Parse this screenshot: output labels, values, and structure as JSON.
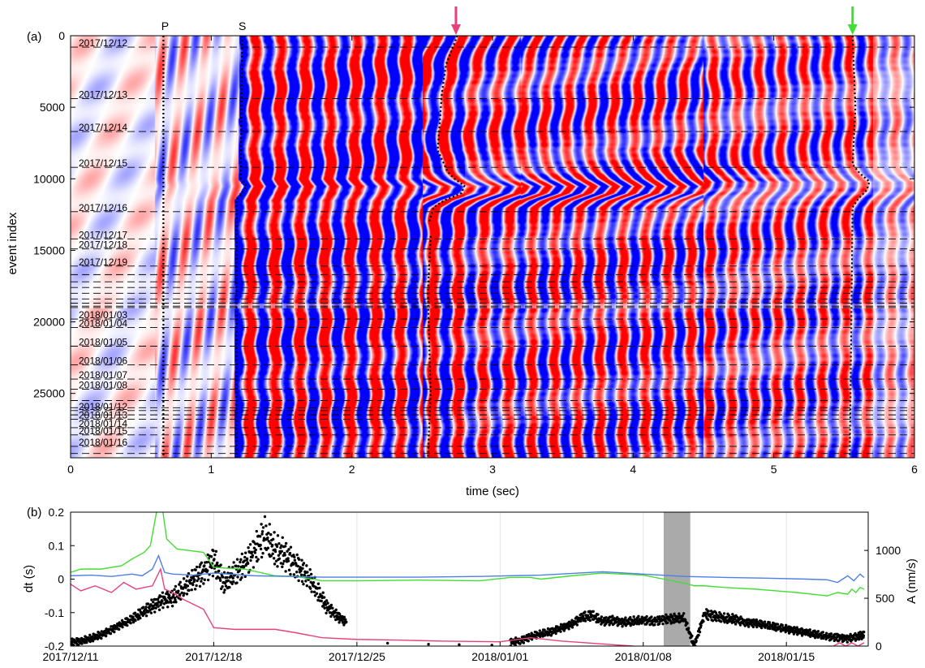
{
  "chart_data": [
    {
      "panel_label": "(a)",
      "type": "heatmap",
      "xlabel": "time (sec)",
      "ylabel": "event index",
      "xlim": [
        0,
        6
      ],
      "ylim": [
        0,
        29500
      ],
      "y_reversed": true,
      "xticks": [
        0,
        1,
        2,
        3,
        4,
        5,
        6
      ],
      "yticks": [
        0,
        5000,
        10000,
        15000,
        20000,
        25000
      ],
      "colormap": [
        "#0000ff",
        "#ffffff",
        "#ff0000"
      ],
      "phase_labels": [
        {
          "text": "P",
          "time": 0.66
        },
        {
          "text": "S",
          "time": 1.21
        }
      ],
      "arrows": [
        {
          "time": 2.74,
          "color": "#e8407a"
        },
        {
          "time": 5.56,
          "color": "#44dd33"
        }
      ],
      "p_pick_time": 0.66,
      "s_pick_curve": {
        "index": [
          0,
          10000,
          10500,
          11000,
          11500,
          29500
        ],
        "time": [
          1.22,
          1.21,
          1.25,
          1.22,
          1.18,
          1.18
        ]
      },
      "coda_pick_curve_1": {
        "index": [
          14000,
          18000,
          25000,
          29500
        ],
        "time": [
          2.56,
          2.54,
          2.56,
          2.54
        ]
      },
      "coda_pick_curve_2": {
        "index": [
          0,
          2000,
          4000,
          8000,
          9500,
          10000,
          10500,
          11000,
          11500,
          12000,
          13000
        ],
        "time": [
          2.75,
          2.67,
          2.64,
          2.61,
          2.68,
          2.73,
          2.8,
          2.78,
          2.66,
          2.58,
          2.55
        ]
      },
      "coda_pick_curve_3": {
        "index": [
          0,
          5000,
          9000,
          9600,
          10200,
          10800,
          11400,
          12000,
          29500
        ],
        "time": [
          5.56,
          5.58,
          5.56,
          5.61,
          5.68,
          5.66,
          5.6,
          5.56,
          5.54
        ]
      },
      "day_markers": [
        {
          "label": "2017/12/12",
          "index": 800
        },
        {
          "label": "2017/12/13",
          "index": 4400
        },
        {
          "label": "2017/12/14",
          "index": 6700
        },
        {
          "label": "2017/12/15",
          "index": 9200
        },
        {
          "label": "2017/12/16",
          "index": 12300
        },
        {
          "label": "2017/12/17",
          "index": 14200
        },
        {
          "label": "2017/12/18",
          "index": 14900
        },
        {
          "label": "2017/12/19",
          "index": 16100
        },
        {
          "label": "2018/01/03",
          "index": 19800
        },
        {
          "label": "2018/01/04",
          "index": 20400
        },
        {
          "label": "2018/01/05",
          "index": 21700
        },
        {
          "label": "2018/01/06",
          "index": 23000
        },
        {
          "label": "2018/01/07",
          "index": 24000
        },
        {
          "label": "2018/01/08",
          "index": 24700
        },
        {
          "label": "2018/01/12",
          "index": 26200
        },
        {
          "label": "2018/01/13",
          "index": 26800
        },
        {
          "label": "2018/01/14",
          "index": 27400
        },
        {
          "label": "2018/01/15",
          "index": 27900
        },
        {
          "label": "2018/01/16",
          "index": 28700
        }
      ],
      "extra_dash_lines": [
        16700,
        17200,
        17600,
        18000,
        18400,
        18700,
        18900,
        19000,
        25500,
        26000,
        26500,
        29200
      ]
    },
    {
      "panel_label": "(b)",
      "type": "line",
      "xlabel": "",
      "ylabel": "dt (s)",
      "ylabel_right": "A (nm/s)",
      "x_type": "date",
      "xlim": [
        "2017-12-11",
        "2018-01-19"
      ],
      "ylim": [
        -0.2,
        0.2
      ],
      "ylim_right": [
        0,
        1400
      ],
      "xticks": [
        "2017/12/11",
        "2017/12/18",
        "2017/12/25",
        "2018/01/01",
        "2018/01/08",
        "2018/01/15"
      ],
      "yticks": [
        "-0.2",
        "-0.1",
        "0",
        "0.1",
        "0.2"
      ],
      "yticks_right": [
        "0",
        "500",
        "1000"
      ],
      "gap_shading": {
        "from": "2018-01-09",
        "to": "2018-01-10.3",
        "color": "#aaaaaa"
      },
      "series": [
        {
          "color": "#44dd33",
          "axis": "left",
          "x": [
            0,
            0.5,
            1.5,
            2.5,
            3,
            3.6,
            3.9,
            4.2,
            4.4,
            4.7,
            5.2,
            6.5,
            7.0,
            8.5,
            10,
            11,
            12.3,
            14,
            17,
            20,
            21.5,
            22.5,
            23,
            24.5,
            26,
            28,
            29,
            30,
            30.5,
            31,
            32,
            33.5,
            34.5,
            35.5,
            37,
            37.5,
            38,
            38.2,
            38.4,
            38.6,
            38.8
          ],
          "y": [
            0.02,
            0.03,
            0.03,
            0.04,
            0.06,
            0.08,
            0.1,
            0.2,
            0.25,
            0.12,
            0.09,
            0.08,
            0.035,
            0.03,
            0.01,
            0.008,
            -0.005,
            -0.005,
            -0.003,
            -0.005,
            0.005,
            0.005,
            0.0,
            0.01,
            0.018,
            0.012,
            0.0,
            -0.012,
            -0.02,
            -0.02,
            -0.025,
            -0.03,
            -0.035,
            -0.04,
            -0.05,
            -0.04,
            -0.045,
            -0.03,
            -0.04,
            -0.025,
            -0.03
          ]
        },
        {
          "color": "#4d7fe6",
          "axis": "left",
          "x": [
            0,
            1,
            2,
            3,
            3.5,
            4,
            4.3,
            4.6,
            5,
            6,
            7,
            9,
            12.3,
            17,
            20,
            23,
            26,
            28,
            30,
            32,
            34,
            36,
            37,
            37.5,
            38,
            38.3,
            38.6,
            38.8
          ],
          "y": [
            0.01,
            0.012,
            0.008,
            0.015,
            0.01,
            0.03,
            0.07,
            0.02,
            0.015,
            0.012,
            0.018,
            0.01,
            0.006,
            0.006,
            0.008,
            0.012,
            0.022,
            0.015,
            0.008,
            0.005,
            0.003,
            0.0,
            -0.002,
            -0.01,
            0.01,
            -0.005,
            0.015,
            0.005
          ]
        },
        {
          "color": "#e8407a",
          "axis": "left",
          "x": [
            0,
            0.5,
            1.2,
            2,
            2.6,
            3.2,
            3.6,
            4.0,
            4.4,
            4.6,
            5,
            5.5,
            6.5,
            7.0,
            8,
            9,
            10,
            11,
            12.3,
            14,
            16,
            18,
            21,
            22.5,
            24,
            27.5,
            28,
            37.3,
            37.6,
            37.9,
            38.2,
            38.5,
            38.8
          ],
          "y": [
            -0.015,
            -0.035,
            -0.02,
            -0.04,
            -0.01,
            -0.03,
            -0.025,
            -0.02,
            0.03,
            -0.03,
            -0.04,
            -0.06,
            -0.09,
            -0.145,
            -0.15,
            -0.15,
            -0.15,
            -0.16,
            -0.175,
            -0.18,
            -0.182,
            -0.185,
            -0.187,
            -0.175,
            -0.185,
            -0.2,
            -0.21,
            -0.2,
            -0.19,
            -0.2,
            -0.19,
            -0.2,
            -0.19
          ]
        }
      ],
      "amplitude_series": {
        "color": "#000000",
        "axis": "right",
        "segments": [
          {
            "x": [
              0,
              0.5,
              1,
              1.5,
              2,
              2.5,
              3,
              3.5,
              4,
              4.5,
              5,
              5.5,
              6,
              6.5,
              7,
              7.5,
              8,
              8.5,
              9,
              9.5,
              10,
              10.5,
              11,
              11.5,
              12,
              12.5,
              13,
              13.5
            ],
            "y": [
              40,
              50,
              80,
              120,
              170,
              230,
              280,
              350,
              420,
              480,
              510,
              600,
              700,
              780,
              900,
              650,
              750,
              850,
              1000,
              1150,
              1000,
              950,
              850,
              750,
              600,
              420,
              320,
              250
            ]
          },
          {
            "x": [
              21.5,
              22,
              22.5,
              23,
              23.5,
              24,
              24.5,
              25,
              25.5,
              26,
              26.5,
              27,
              27.5,
              28,
              28.5,
              29,
              29.5,
              30,
              30.5,
              31,
              31.5,
              32,
              32.5,
              33,
              33.5,
              34,
              34.5,
              35,
              35.5,
              36,
              36.5,
              37,
              37.5,
              38,
              38.5,
              38.8
            ],
            "y": [
              40,
              60,
              100,
              130,
              150,
              190,
              230,
              300,
              320,
              260,
              270,
              250,
              260,
              270,
              260,
              280,
              285,
              290,
              0,
              340,
              310,
              290,
              280,
              250,
              240,
              220,
              200,
              180,
              160,
              140,
              120,
              100,
              90,
              80,
              100,
              120
            ]
          }
        ],
        "isolated_points": [
          {
            "x": 15.5,
            "y": 30
          },
          {
            "x": 17.5,
            "y": 20
          },
          {
            "x": 19.0,
            "y": 15
          },
          {
            "x": 20.6,
            "y": 10
          }
        ]
      }
    }
  ]
}
